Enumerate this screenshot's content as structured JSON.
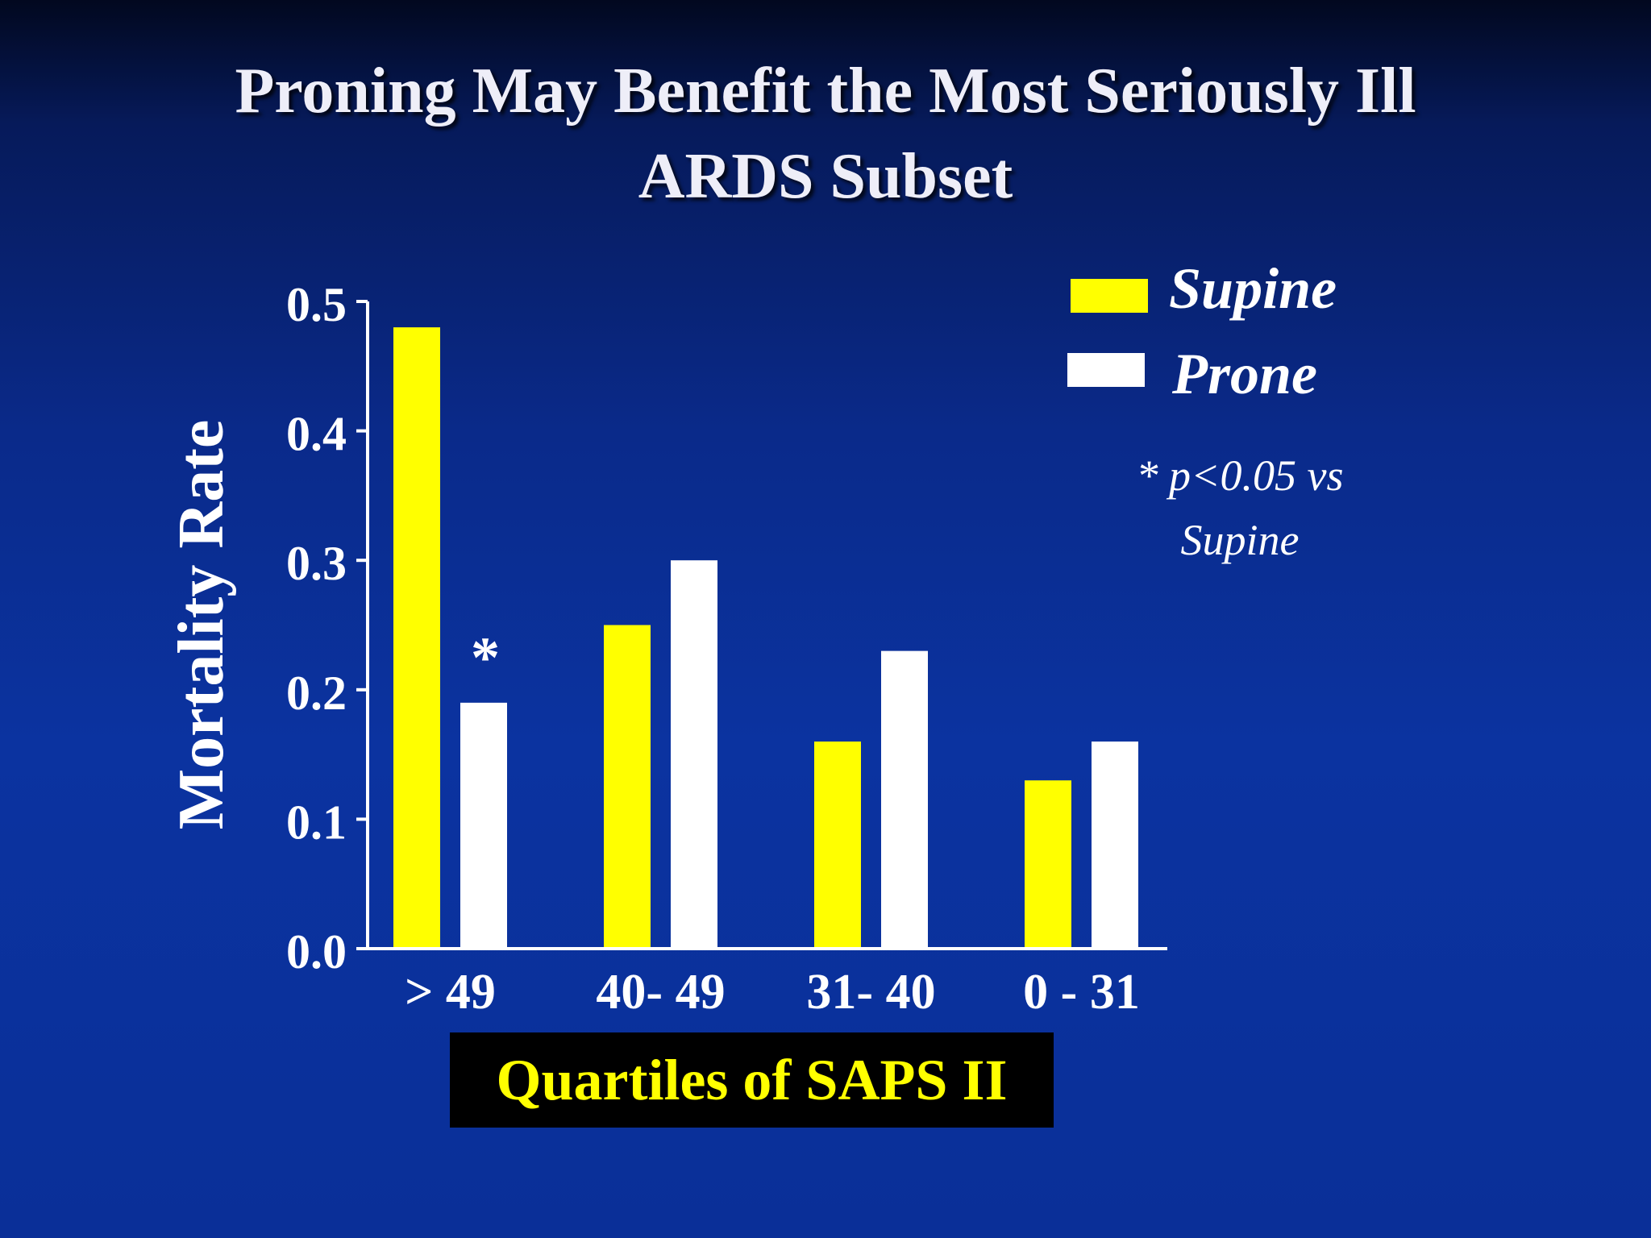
{
  "slide": {
    "title_line1": "Proning May Benefit the Most Seriously Ill",
    "title_line2": "ARDS Subset",
    "footnote_line1": "* p<0.05 vs",
    "footnote_line2": "Supine"
  },
  "colors": {
    "supine": "#ffff00",
    "prone": "#ffffff",
    "axis": "#ffffff",
    "xlabel_text": "#ffff00",
    "xlabel_bg": "#000000"
  },
  "chart_data": {
    "type": "bar",
    "title": "Proning May Benefit the Most Seriously Ill ARDS Subset",
    "xlabel": "Quartiles of SAPS II",
    "ylabel": "Mortality Rate",
    "categories": [
      "> 49",
      "40- 49",
      "31- 40",
      "0 - 31"
    ],
    "series": [
      {
        "name": "Supine",
        "values": [
          0.48,
          0.25,
          0.16,
          0.13
        ]
      },
      {
        "name": "Prone",
        "values": [
          0.19,
          0.3,
          0.23,
          0.16
        ]
      }
    ],
    "ylim": [
      0,
      0.5
    ],
    "yticks": [
      "0.0",
      "0.1",
      "0.2",
      "0.3",
      "0.4",
      "0.5"
    ],
    "grid": false,
    "legend_position": "top-right",
    "annotations": [
      {
        "text": "*",
        "category": "> 49",
        "series": "Prone"
      }
    ]
  }
}
